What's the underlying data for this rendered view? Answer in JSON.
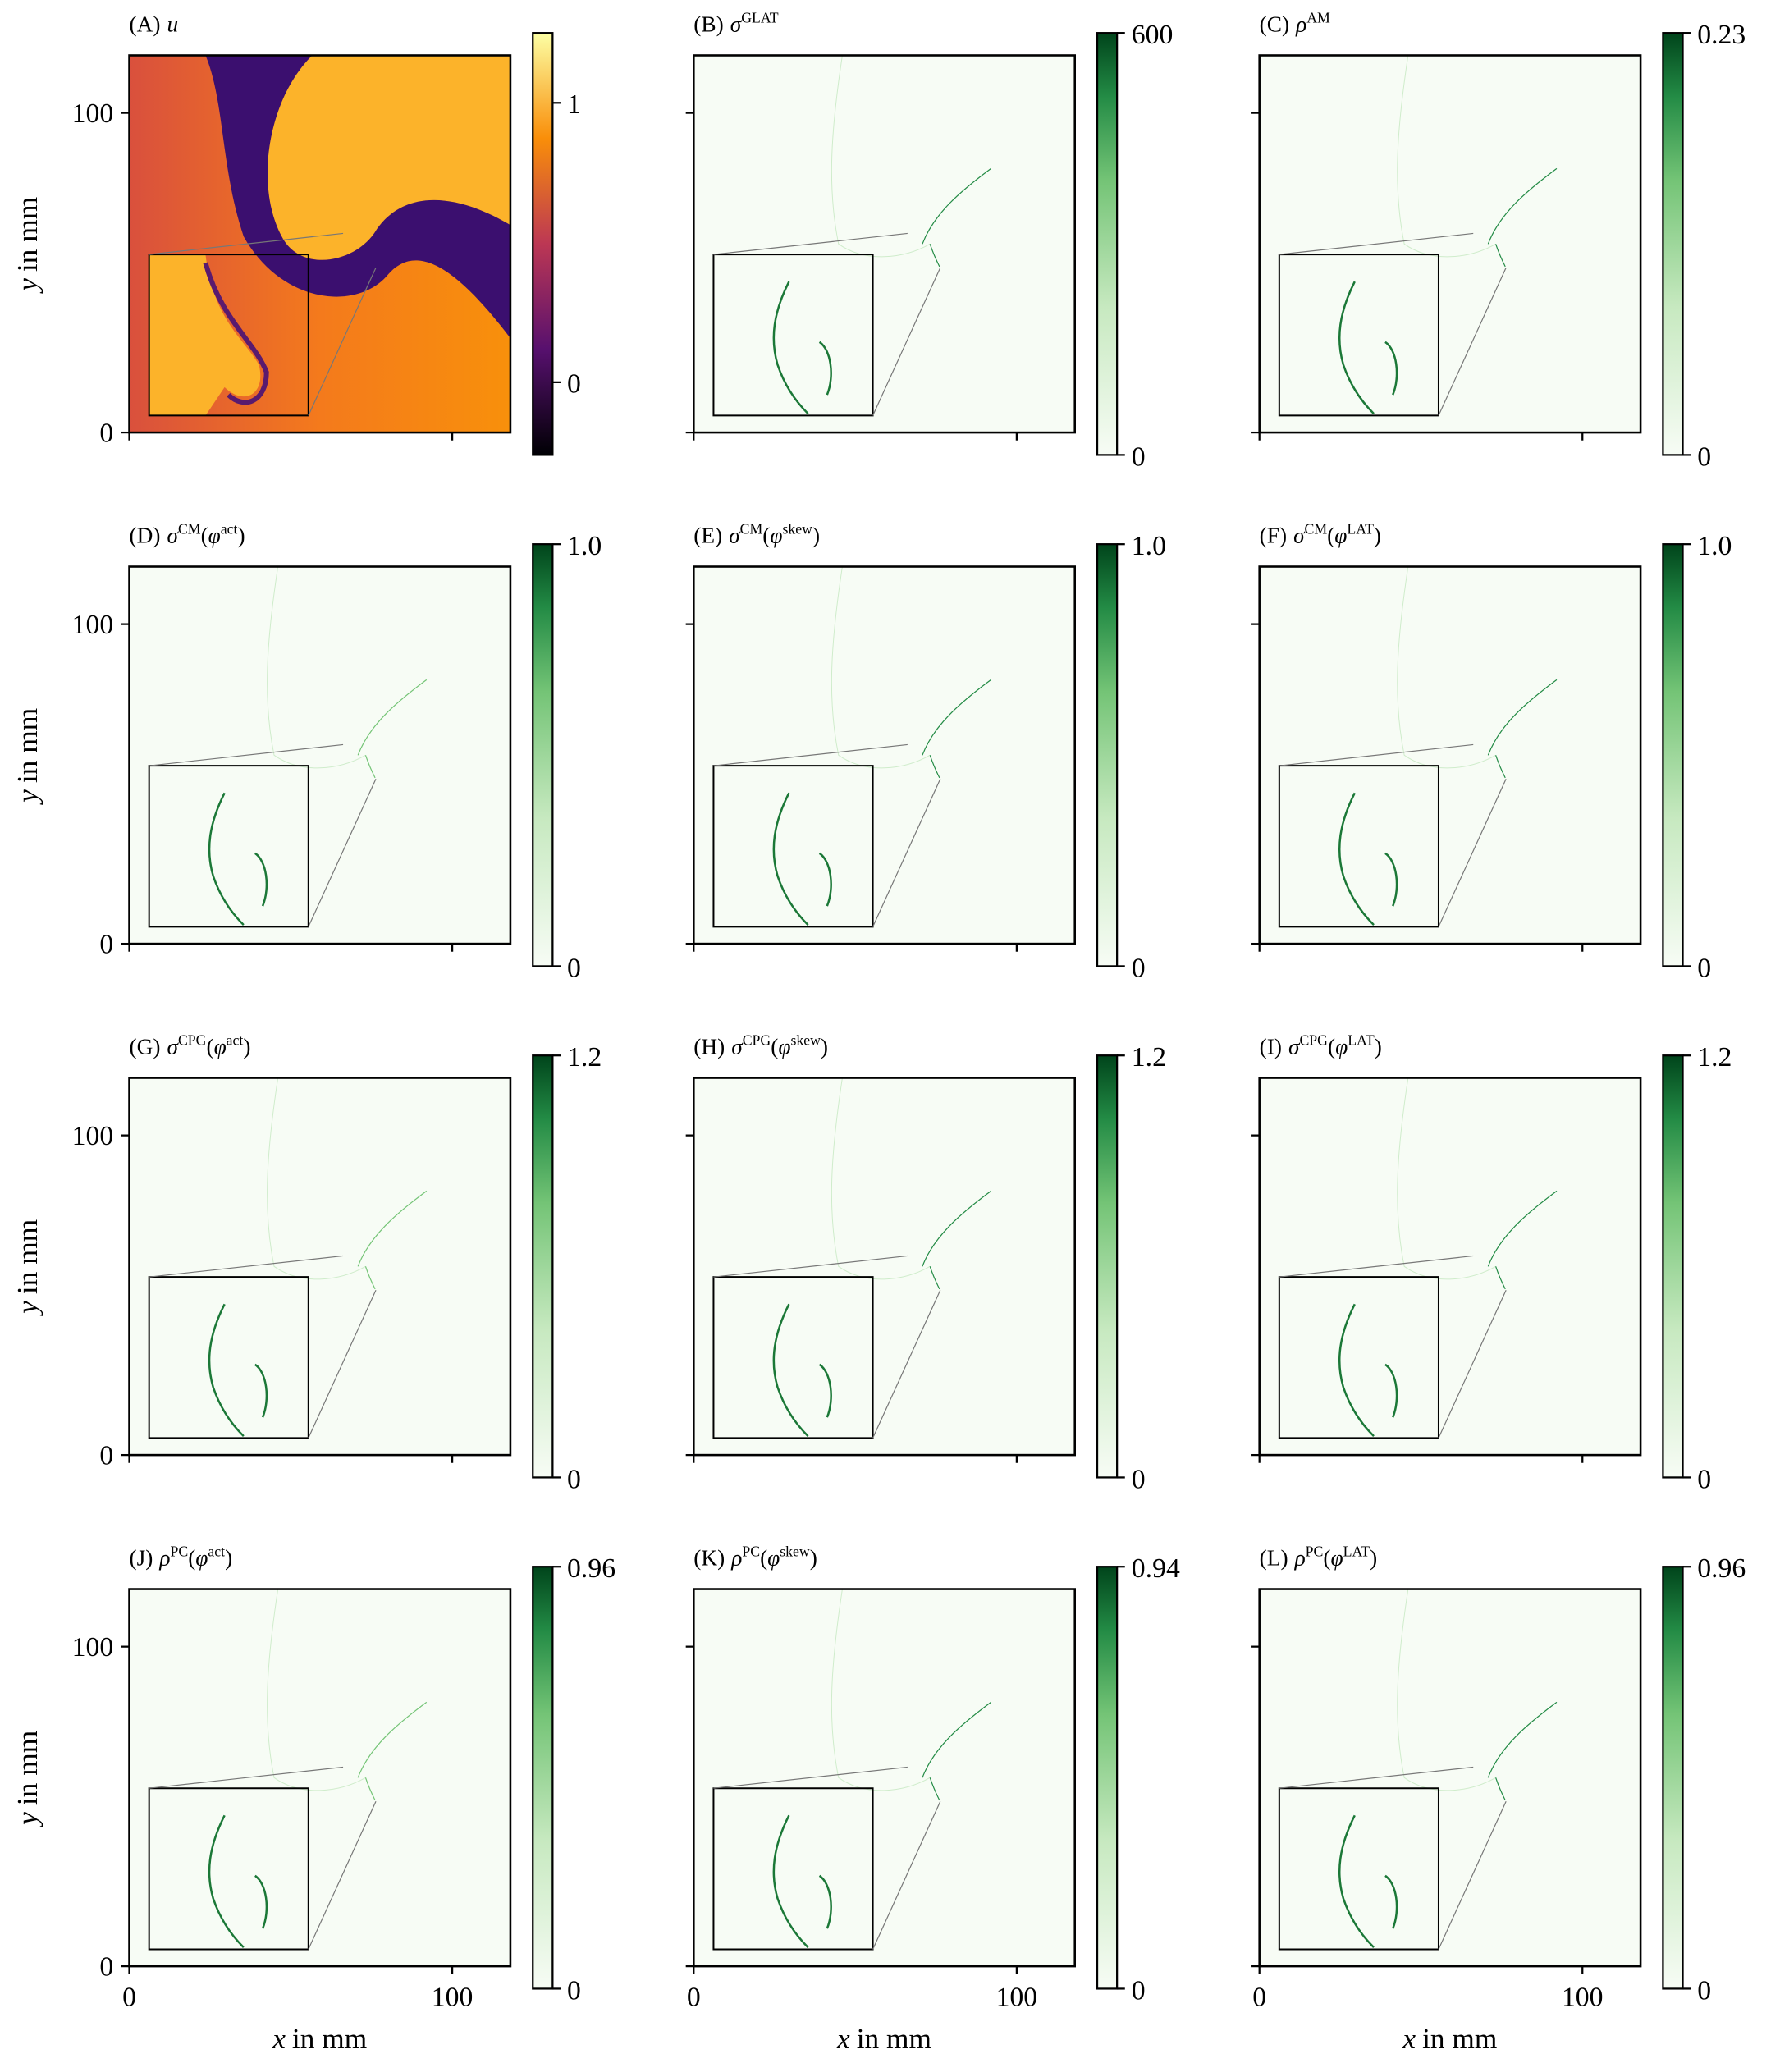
{
  "chart_data": [
    {
      "type": "heatmap",
      "title": [
        {
          "text": "(A)"
        },
        {
          "text": "u",
          "italic": true
        }
      ],
      "colormap": "inferno",
      "clim": [
        -0.26,
        1.25
      ],
      "cticks": [
        0,
        1
      ],
      "xlim": [
        0,
        118
      ],
      "ylim": [
        0,
        118
      ],
      "xticks": [
        0,
        100
      ],
      "yticks": [
        0,
        100
      ],
      "show_xtick_labels": false,
      "show_ytick_labels": true,
      "ylabel": [
        {
          "text": "y",
          "italic": true
        },
        {
          "text": "in mm"
        }
      ]
    },
    {
      "type": "heatmap",
      "title": [
        {
          "text": "(B)"
        },
        {
          "text": "σ",
          "italic": true
        },
        {
          "text": "GLAT",
          "sup": true
        }
      ],
      "colormap": "Greens",
      "clim": [
        0,
        600
      ],
      "cticks": [
        0,
        600
      ],
      "xlim": [
        0,
        118
      ],
      "ylim": [
        0,
        118
      ],
      "xticks": [
        0,
        100
      ],
      "yticks": [
        0,
        100
      ],
      "show_xtick_labels": false,
      "show_ytick_labels": false
    },
    {
      "type": "heatmap",
      "title": [
        {
          "text": "(C)"
        },
        {
          "text": "ρ",
          "italic": true
        },
        {
          "text": "AM",
          "sup": true
        }
      ],
      "colormap": "Greens",
      "clim": [
        0,
        0.23
      ],
      "cticks": [
        0,
        0.23
      ],
      "xlim": [
        0,
        118
      ],
      "ylim": [
        0,
        118
      ],
      "xticks": [
        0,
        100
      ],
      "yticks": [
        0,
        100
      ],
      "show_xtick_labels": false,
      "show_ytick_labels": false
    },
    {
      "type": "heatmap",
      "title": [
        {
          "text": "(D)"
        },
        {
          "text": "σ",
          "italic": true
        },
        {
          "text": "CM",
          "sup": true
        },
        {
          "text": "("
        },
        {
          "text": "φ",
          "italic": true
        },
        {
          "text": "act",
          "sup": true
        },
        {
          "text": ")"
        }
      ],
      "colormap": "Greens",
      "clim": [
        0,
        1
      ],
      "cticks": [
        0,
        {
          "value": 1,
          "label": "1.0"
        }
      ],
      "xlim": [
        0,
        118
      ],
      "ylim": [
        0,
        118
      ],
      "xticks": [
        0,
        100
      ],
      "yticks": [
        0,
        100
      ],
      "show_xtick_labels": false,
      "show_ytick_labels": true,
      "ylabel": [
        {
          "text": "y",
          "italic": true
        },
        {
          "text": "in mm"
        }
      ]
    },
    {
      "type": "heatmap",
      "title": [
        {
          "text": "(E)"
        },
        {
          "text": "σ",
          "italic": true
        },
        {
          "text": "CM",
          "sup": true
        },
        {
          "text": "("
        },
        {
          "text": "φ",
          "italic": true
        },
        {
          "text": "skew",
          "sup": true
        },
        {
          "text": ")"
        }
      ],
      "colormap": "Greens",
      "clim": [
        0,
        1
      ],
      "cticks": [
        0,
        {
          "value": 1,
          "label": "1.0"
        }
      ],
      "xlim": [
        0,
        118
      ],
      "ylim": [
        0,
        118
      ],
      "xticks": [
        0,
        100
      ],
      "yticks": [
        0,
        100
      ],
      "show_xtick_labels": false,
      "show_ytick_labels": false
    },
    {
      "type": "heatmap",
      "title": [
        {
          "text": "(F)"
        },
        {
          "text": "σ",
          "italic": true
        },
        {
          "text": "CM",
          "sup": true
        },
        {
          "text": "("
        },
        {
          "text": "φ",
          "italic": true
        },
        {
          "text": "LAT",
          "sup": true
        },
        {
          "text": ")"
        }
      ],
      "colormap": "Greens",
      "clim": [
        0,
        1
      ],
      "cticks": [
        0,
        {
          "value": 1,
          "label": "1.0"
        }
      ],
      "xlim": [
        0,
        118
      ],
      "ylim": [
        0,
        118
      ],
      "xticks": [
        0,
        100
      ],
      "yticks": [
        0,
        100
      ],
      "show_xtick_labels": false,
      "show_ytick_labels": false
    },
    {
      "type": "heatmap",
      "title": [
        {
          "text": "(G)"
        },
        {
          "text": "σ",
          "italic": true
        },
        {
          "text": "CPG",
          "sup": true
        },
        {
          "text": "("
        },
        {
          "text": "φ",
          "italic": true
        },
        {
          "text": "act",
          "sup": true
        },
        {
          "text": ")"
        }
      ],
      "colormap": "Greens",
      "clim": [
        0,
        1.2
      ],
      "cticks": [
        0,
        1.2
      ],
      "xlim": [
        0,
        118
      ],
      "ylim": [
        0,
        118
      ],
      "xticks": [
        0,
        100
      ],
      "yticks": [
        0,
        100
      ],
      "show_xtick_labels": false,
      "show_ytick_labels": true,
      "ylabel": [
        {
          "text": "y",
          "italic": true
        },
        {
          "text": "in mm"
        }
      ]
    },
    {
      "type": "heatmap",
      "title": [
        {
          "text": "(H)"
        },
        {
          "text": "σ",
          "italic": true
        },
        {
          "text": "CPG",
          "sup": true
        },
        {
          "text": "("
        },
        {
          "text": "φ",
          "italic": true
        },
        {
          "text": "skew",
          "sup": true
        },
        {
          "text": ")"
        }
      ],
      "colormap": "Greens",
      "clim": [
        0,
        1.2
      ],
      "cticks": [
        0,
        1.2
      ],
      "xlim": [
        0,
        118
      ],
      "ylim": [
        0,
        118
      ],
      "xticks": [
        0,
        100
      ],
      "yticks": [
        0,
        100
      ],
      "show_xtick_labels": false,
      "show_ytick_labels": false
    },
    {
      "type": "heatmap",
      "title": [
        {
          "text": "(I)"
        },
        {
          "text": "σ",
          "italic": true
        },
        {
          "text": "CPG",
          "sup": true
        },
        {
          "text": "("
        },
        {
          "text": "φ",
          "italic": true
        },
        {
          "text": "LAT",
          "sup": true
        },
        {
          "text": ")"
        }
      ],
      "colormap": "Greens",
      "clim": [
        0,
        1.2
      ],
      "cticks": [
        0,
        1.2
      ],
      "xlim": [
        0,
        118
      ],
      "ylim": [
        0,
        118
      ],
      "xticks": [
        0,
        100
      ],
      "yticks": [
        0,
        100
      ],
      "show_xtick_labels": false,
      "show_ytick_labels": false
    },
    {
      "type": "heatmap",
      "title": [
        {
          "text": "(J)"
        },
        {
          "text": "ρ",
          "italic": true
        },
        {
          "text": "PC",
          "sup": true
        },
        {
          "text": "("
        },
        {
          "text": "φ",
          "italic": true
        },
        {
          "text": "act",
          "sup": true
        },
        {
          "text": ")"
        }
      ],
      "colormap": "Greens",
      "clim": [
        0,
        0.96
      ],
      "cticks": [
        0,
        0.96
      ],
      "xlim": [
        0,
        118
      ],
      "ylim": [
        0,
        118
      ],
      "xticks": [
        0,
        100
      ],
      "yticks": [
        0,
        100
      ],
      "show_xtick_labels": true,
      "show_ytick_labels": true,
      "ylabel": [
        {
          "text": "y",
          "italic": true
        },
        {
          "text": "in mm"
        }
      ],
      "xlabel": [
        {
          "text": "x",
          "italic": true
        },
        {
          "text": "in mm"
        }
      ]
    },
    {
      "type": "heatmap",
      "title": [
        {
          "text": "(K)"
        },
        {
          "text": "ρ",
          "italic": true
        },
        {
          "text": "PC",
          "sup": true
        },
        {
          "text": "("
        },
        {
          "text": "φ",
          "italic": true
        },
        {
          "text": "skew",
          "sup": true
        },
        {
          "text": ")"
        }
      ],
      "colormap": "Greens",
      "clim": [
        0,
        0.94
      ],
      "cticks": [
        0,
        0.94
      ],
      "xlim": [
        0,
        118
      ],
      "ylim": [
        0,
        118
      ],
      "xticks": [
        0,
        100
      ],
      "yticks": [
        0,
        100
      ],
      "show_xtick_labels": true,
      "show_ytick_labels": false,
      "xlabel": [
        {
          "text": "x",
          "italic": true
        },
        {
          "text": "in mm"
        }
      ]
    },
    {
      "type": "heatmap",
      "title": [
        {
          "text": "(L)"
        },
        {
          "text": "ρ",
          "italic": true
        },
        {
          "text": "PC",
          "sup": true
        },
        {
          "text": "("
        },
        {
          "text": "φ",
          "italic": true
        },
        {
          "text": "LAT",
          "sup": true
        },
        {
          "text": ")"
        }
      ],
      "colormap": "Greens",
      "clim": [
        0,
        0.96
      ],
      "cticks": [
        0,
        0.96
      ],
      "xlim": [
        0,
        118
      ],
      "ylim": [
        0,
        118
      ],
      "xticks": [
        0,
        100
      ],
      "yticks": [
        0,
        100
      ],
      "show_xtick_labels": true,
      "show_ytick_labels": false,
      "xlabel": [
        {
          "text": "x",
          "italic": true
        },
        {
          "text": "in mm"
        }
      ]
    }
  ]
}
